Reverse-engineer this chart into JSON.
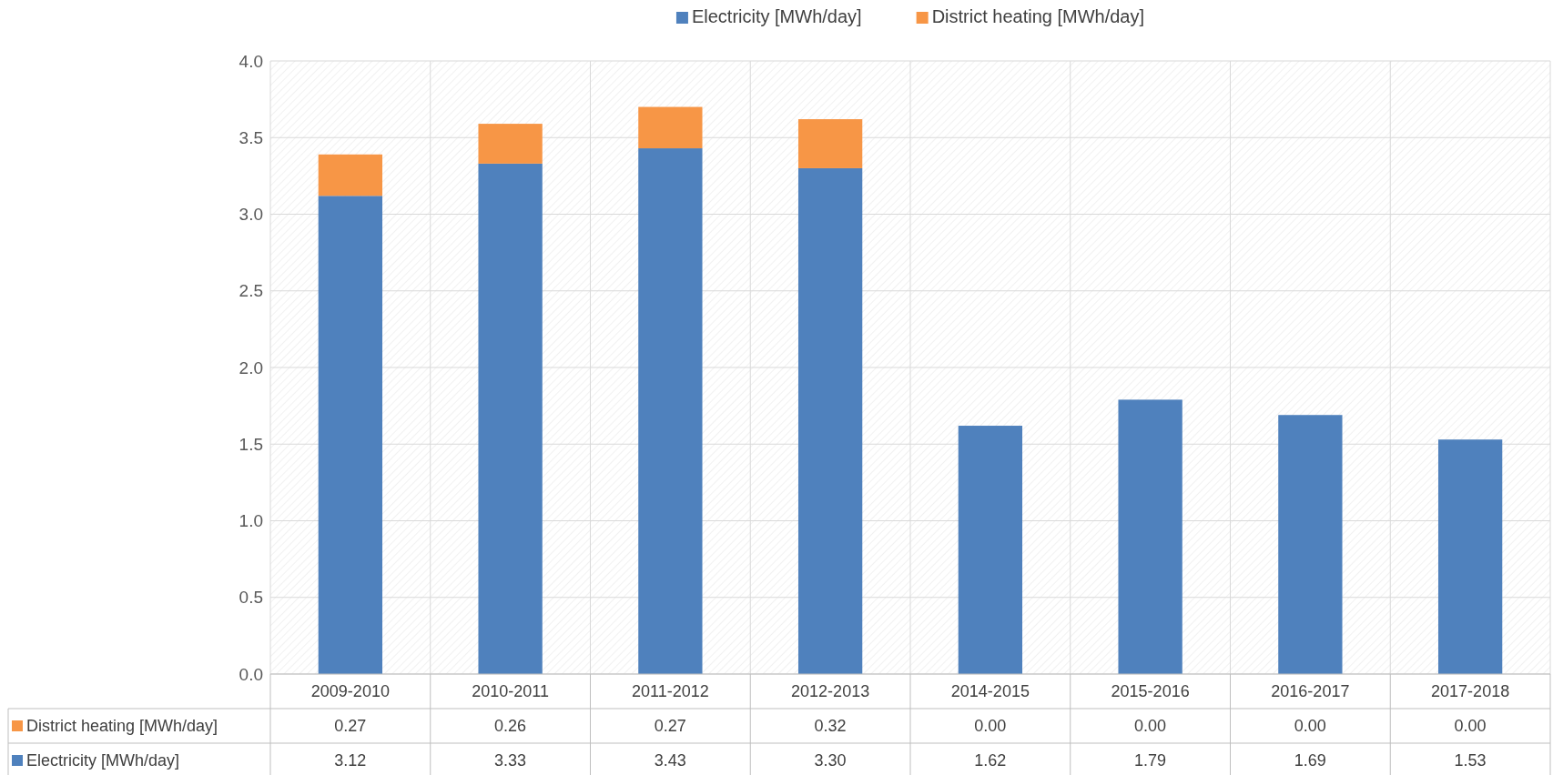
{
  "chart_data": {
    "type": "bar",
    "stacked": true,
    "categories": [
      "2009-2010",
      "2010-2011",
      "2011-2012",
      "2012-2013",
      "2014-2015",
      "2015-2016",
      "2016-2017",
      "2017-2018"
    ],
    "series": [
      {
        "name": "Electricity [MWh/day]",
        "color": "#4f81bd",
        "values": [
          3.12,
          3.33,
          3.43,
          3.3,
          1.62,
          1.79,
          1.69,
          1.53
        ],
        "value_labels": [
          "3.12",
          "3.33",
          "3.43",
          "3.30",
          "1.62",
          "1.79",
          "1.69",
          "1.53"
        ]
      },
      {
        "name": "District heating [MWh/day]",
        "color": "#f79646",
        "values": [
          0.27,
          0.26,
          0.27,
          0.32,
          0,
          0,
          0,
          0
        ],
        "value_labels": [
          "0.27",
          "0.26",
          "0.27",
          "0.32",
          "0.00",
          "0.00",
          "0.00",
          "0.00"
        ]
      }
    ],
    "ylim": [
      0,
      4
    ],
    "yticks": [
      {
        "value": 0,
        "label": "0.0"
      },
      0.5,
      {
        "value": 1,
        "label": "1.0"
      },
      1.5,
      {
        "value": 2,
        "label": "2.0"
      },
      2.5,
      {
        "value": 3,
        "label": "3.0"
      },
      3.5,
      {
        "value": 4,
        "label": "4.0"
      }
    ],
    "grid": true,
    "legend": "top"
  }
}
